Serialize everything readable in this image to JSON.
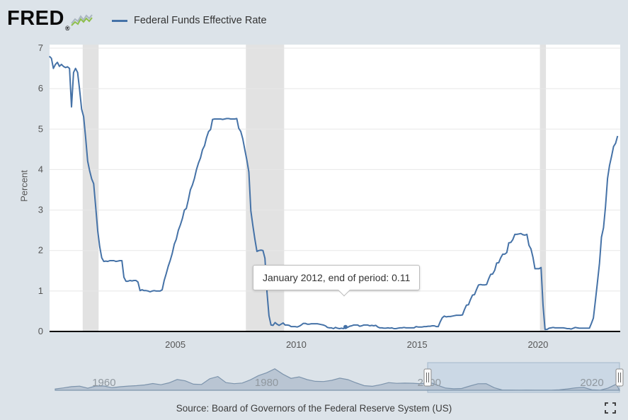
{
  "header": {
    "logo_text": "FRED",
    "registered_mark": "®",
    "legend_label": "Federal Funds Effective Rate"
  },
  "tooltip": {
    "label": "January 2012, end of period:",
    "value": "0.11"
  },
  "footer": {
    "source_text": "Source: Board of Governors of the Federal Reserve System (US)"
  },
  "colors": {
    "page_bg": "#dce3e9",
    "plot_bg": "#ffffff",
    "series_line": "#4572a7",
    "grid": "#e7e7e7",
    "recession": "#e2e2e2",
    "axis": "#000000",
    "tick_text": "#555555",
    "mini_area": "#b3c0cf",
    "mini_line": "#7d94ac",
    "selection_fill": "#bdd0e2",
    "selection_border": "#a3b8ca"
  },
  "chart_data": {
    "type": "line",
    "title": "Federal Funds Effective Rate",
    "xlabel": "",
    "ylabel": "Percent",
    "xlim": [
      1999.8,
      2023.4
    ],
    "ylim": [
      0,
      7
    ],
    "yticks": [
      0,
      1,
      2,
      3,
      4,
      5,
      6,
      7
    ],
    "xticks": [
      2005,
      2010,
      2015,
      2020
    ],
    "grid": "horizontal",
    "legend_position": "top-header",
    "recession_bands": [
      [
        2001.17,
        2001.83
      ],
      [
        2007.92,
        2009.5
      ],
      [
        2020.08,
        2020.33
      ]
    ],
    "hover": {
      "year_decimal": 2012.04,
      "value": 0.11
    },
    "series": [
      {
        "name": "Federal Funds Effective Rate",
        "color": "#4572a7",
        "units": "Percent",
        "frequency": "monthly",
        "aggregation": "end of period",
        "start_year": 1999,
        "start_month": 10,
        "values": [
          6.8,
          6.75,
          6.5,
          6.6,
          6.65,
          6.55,
          6.6,
          6.55,
          6.52,
          6.54,
          6.5,
          5.55,
          6.4,
          6.5,
          6.4,
          5.98,
          5.49,
          5.31,
          4.8,
          4.21,
          3.97,
          3.77,
          3.65,
          3.07,
          2.49,
          2.09,
          1.82,
          1.73,
          1.74,
          1.73,
          1.75,
          1.75,
          1.75,
          1.73,
          1.74,
          1.75,
          1.75,
          1.34,
          1.24,
          1.24,
          1.26,
          1.25,
          1.26,
          1.26,
          1.22,
          1.01,
          1.03,
          1.01,
          1.01,
          1.0,
          0.98,
          1.0,
          1.01,
          1.0,
          1.0,
          1.0,
          1.03,
          1.26,
          1.43,
          1.61,
          1.76,
          1.93,
          2.16,
          2.28,
          2.5,
          2.63,
          2.79,
          3.0,
          3.04,
          3.26,
          3.5,
          3.62,
          3.78,
          4.0,
          4.16,
          4.29,
          4.49,
          4.59,
          4.79,
          4.94,
          4.99,
          5.24,
          5.25,
          5.25,
          5.25,
          5.25,
          5.24,
          5.25,
          5.26,
          5.26,
          5.25,
          5.25,
          5.25,
          5.26,
          5.02,
          4.94,
          4.76,
          4.49,
          4.24,
          3.94,
          2.98,
          2.61,
          2.28,
          1.98,
          2.0,
          2.01,
          2.0,
          1.81,
          0.97,
          0.39,
          0.16,
          0.15,
          0.22,
          0.18,
          0.15,
          0.18,
          0.21,
          0.16,
          0.16,
          0.15,
          0.12,
          0.12,
          0.12,
          0.11,
          0.13,
          0.16,
          0.2,
          0.2,
          0.18,
          0.18,
          0.19,
          0.19,
          0.19,
          0.19,
          0.18,
          0.17,
          0.16,
          0.14,
          0.1,
          0.09,
          0.09,
          0.07,
          0.1,
          0.08,
          0.07,
          0.08,
          0.07,
          0.11,
          0.1,
          0.13,
          0.14,
          0.16,
          0.16,
          0.16,
          0.13,
          0.14,
          0.16,
          0.16,
          0.16,
          0.14,
          0.15,
          0.14,
          0.15,
          0.11,
          0.09,
          0.09,
          0.08,
          0.08,
          0.09,
          0.08,
          0.09,
          0.07,
          0.07,
          0.08,
          0.09,
          0.09,
          0.1,
          0.09,
          0.09,
          0.09,
          0.09,
          0.09,
          0.12,
          0.11,
          0.11,
          0.11,
          0.12,
          0.12,
          0.13,
          0.13,
          0.14,
          0.14,
          0.12,
          0.12,
          0.24,
          0.34,
          0.38,
          0.36,
          0.37,
          0.37,
          0.38,
          0.39,
          0.4,
          0.4,
          0.4,
          0.41,
          0.54,
          0.65,
          0.66,
          0.79,
          0.9,
          0.91,
          1.04,
          1.15,
          1.16,
          1.15,
          1.15,
          1.16,
          1.3,
          1.41,
          1.42,
          1.51,
          1.69,
          1.7,
          1.82,
          1.91,
          1.91,
          1.95,
          2.19,
          2.2,
          2.27,
          2.4,
          2.4,
          2.41,
          2.42,
          2.39,
          2.38,
          2.4,
          2.13,
          2.04,
          1.83,
          1.55,
          1.55,
          1.55,
          1.58,
          0.65,
          0.05,
          0.05,
          0.08,
          0.09,
          0.1,
          0.09,
          0.09,
          0.09,
          0.09,
          0.09,
          0.08,
          0.07,
          0.07,
          0.06,
          0.08,
          0.1,
          0.09,
          0.08,
          0.08,
          0.08,
          0.08,
          0.08,
          0.08,
          0.2,
          0.33,
          0.77,
          1.21,
          1.68,
          2.33,
          2.56,
          3.08,
          3.78,
          4.1,
          4.33,
          4.57,
          4.65,
          4.83
        ]
      }
    ]
  },
  "mini_chart": {
    "type": "area",
    "xlim": [
      1954,
      2023.4
    ],
    "ylim": [
      0,
      20
    ],
    "start_year": 1954,
    "frequency": "annual",
    "labels": [
      1960,
      1980,
      2000,
      2020
    ],
    "selection": [
      1999.8,
      2023.4
    ],
    "values": [
      1.0,
      1.79,
      2.73,
      3.11,
      1.57,
      3.3,
      3.22,
      1.96,
      2.71,
      3.18,
      3.5,
      4.07,
      5.11,
      4.22,
      5.66,
      8.21,
      7.18,
      4.66,
      4.43,
      8.73,
      10.5,
      5.82,
      5.05,
      5.54,
      7.93,
      11.19,
      13.36,
      16.38,
      12.26,
      9.09,
      10.23,
      8.1,
      6.81,
      6.66,
      7.57,
      9.22,
      8.1,
      5.69,
      3.52,
      3.02,
      4.21,
      5.83,
      5.3,
      5.46,
      5.35,
      4.97,
      6.24,
      3.88,
      1.67,
      1.13,
      1.35,
      3.22,
      4.97,
      5.02,
      1.92,
      0.16,
      0.18,
      0.1,
      0.14,
      0.11,
      0.09,
      0.13,
      0.4,
      1.0,
      1.83,
      2.16,
      0.36,
      0.08,
      1.68,
      4.65
    ]
  }
}
